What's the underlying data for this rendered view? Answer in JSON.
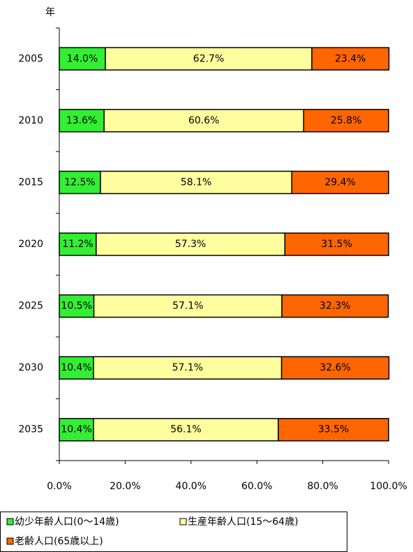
{
  "chart_data": {
    "type": "stacked-barh",
    "y_label": "年",
    "categories": [
      "2005",
      "2010",
      "2015",
      "2020",
      "2025",
      "2030",
      "2035"
    ],
    "series": [
      {
        "name": "幼少年齢人口(0～14歳)",
        "color": "#33ee33",
        "values": [
          14.0,
          13.6,
          12.5,
          11.2,
          10.5,
          10.4,
          10.4
        ],
        "value_labels": [
          "14.0%",
          "13.6%",
          "12.5%",
          "11.2%",
          "10.5%",
          "10.4%",
          "10.4%"
        ]
      },
      {
        "name": "生産年齢人口(15～64歳)",
        "color": "#ffffa0",
        "values": [
          62.7,
          60.6,
          58.1,
          57.3,
          57.1,
          57.1,
          56.1
        ],
        "value_labels": [
          "62.7%",
          "60.6%",
          "58.1%",
          "57.3%",
          "57.1%",
          "57.1%",
          "56.1%"
        ]
      },
      {
        "name": "老齢人口(65歳以上)",
        "color": "#ff6600",
        "values": [
          23.4,
          25.8,
          29.4,
          31.5,
          32.3,
          32.6,
          33.5
        ],
        "value_labels": [
          "23.4%",
          "25.8%",
          "29.4%",
          "31.5%",
          "32.3%",
          "32.6%",
          "33.5%"
        ]
      }
    ],
    "xlim": [
      0,
      100
    ],
    "xticks": [
      {
        "value": 0,
        "label": "0.0%"
      },
      {
        "value": 20,
        "label": "20.0%"
      },
      {
        "value": 40,
        "label": "40.0%"
      },
      {
        "value": 60,
        "label": "60.0%"
      },
      {
        "value": 80,
        "label": "80.0%"
      },
      {
        "value": 100,
        "label": "100.0%"
      }
    ],
    "legend": "bottom"
  }
}
